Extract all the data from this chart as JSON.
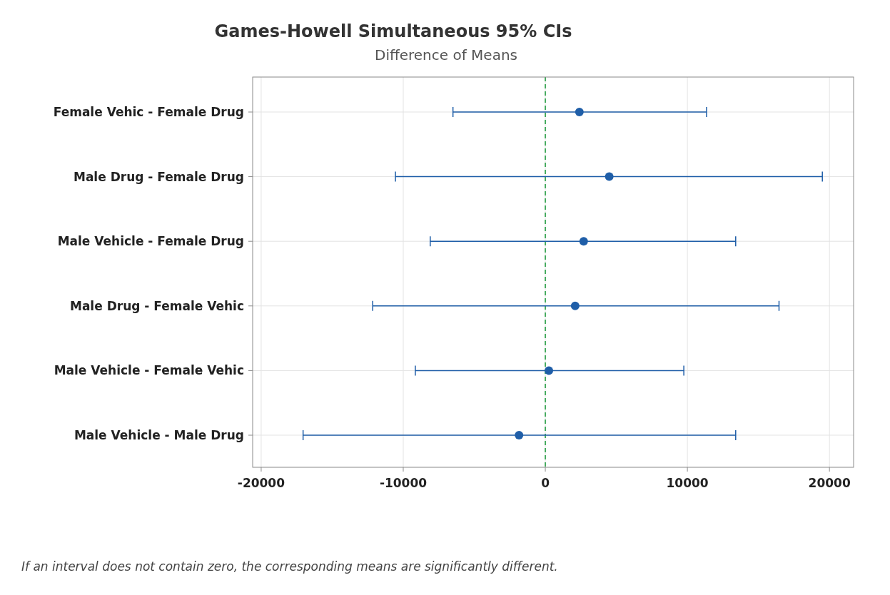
{
  "chart_data": {
    "type": "scatter",
    "orientation": "horizontal",
    "title": "Games-Howell Simultaneous 95% CIs",
    "subtitle": "Difference of Means",
    "categories": [
      "Female Vehic - Female Drug",
      "Male Drug - Female Drug",
      "Male Vehicle - Female Drug",
      "Male Drug - Female Vehic",
      "Male Vehicle - Female Vehic",
      "Male Vehicle - Male Drug"
    ],
    "series": [
      {
        "color": "#1f5ea8",
        "values": [
          2400,
          4500,
          2700,
          2100,
          250,
          -1850
        ],
        "errors": [
          [
            -6500,
            11350
          ],
          [
            -10550,
            19500
          ],
          [
            -8100,
            13400
          ],
          [
            -12150,
            16450
          ],
          [
            -9150,
            9750
          ],
          [
            -17050,
            13400
          ]
        ]
      }
    ],
    "xlim": [
      -20600,
      21700
    ],
    "xticks": [
      -20000,
      -10000,
      0,
      10000,
      20000
    ],
    "grid": true,
    "marker": "circle",
    "ref_lines": [
      {
        "axis": "x",
        "value": 0,
        "color": "#1a9a3a",
        "line_style": "dashed"
      }
    ],
    "annotations": [
      "If an interval does not contain zero, the corresponding means are significantly different."
    ]
  }
}
